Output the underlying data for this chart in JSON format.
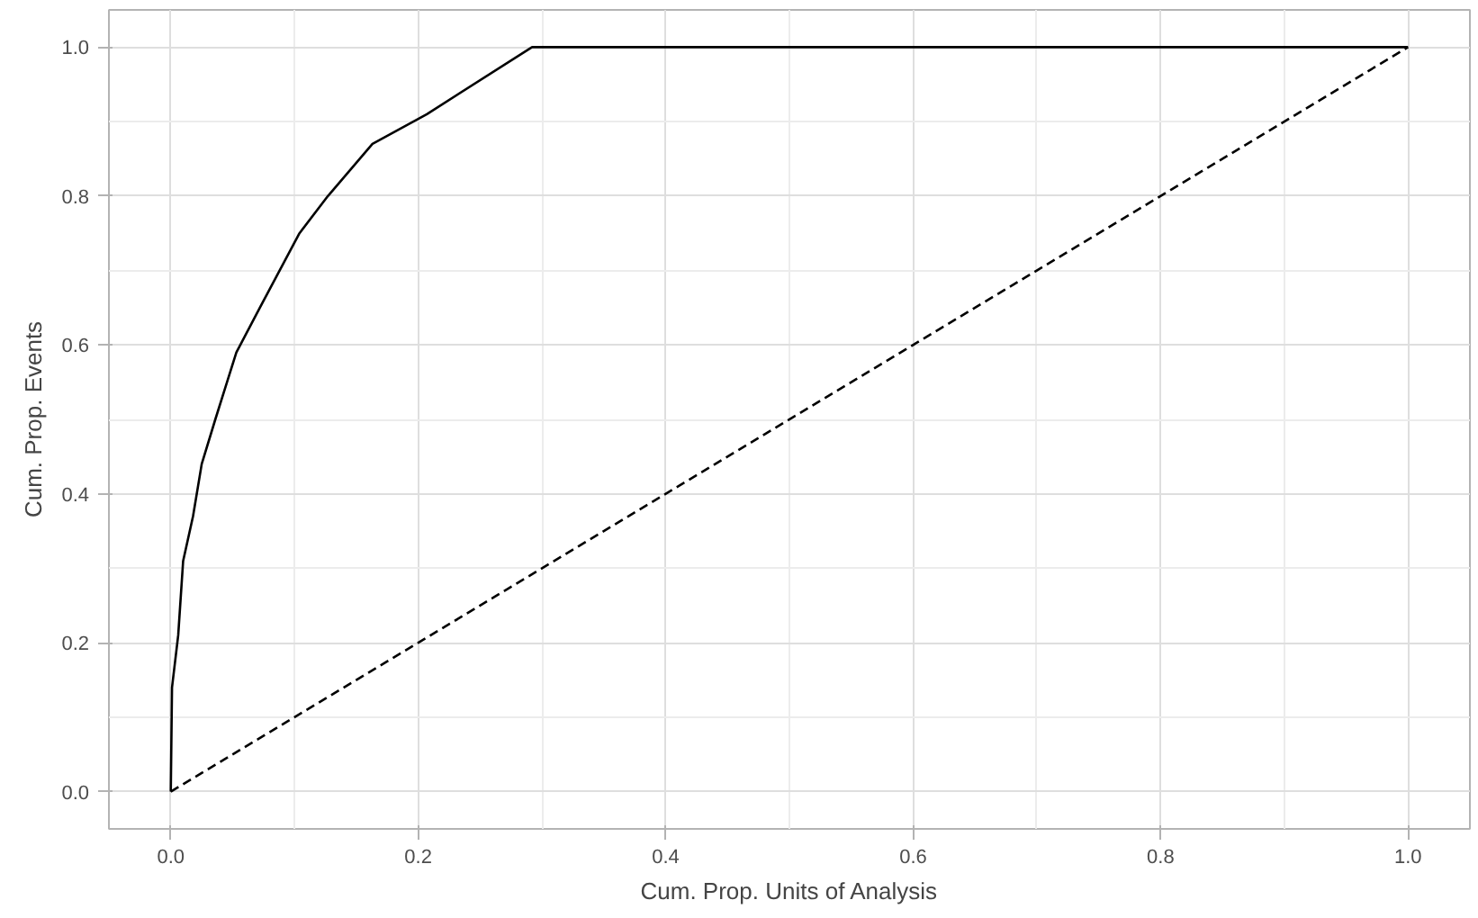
{
  "chart_data": {
    "type": "line",
    "xlabel": "Cum. Prop. Units of Analysis",
    "ylabel": "Cum. Prop. Events",
    "xlim": [
      -0.05,
      1.05
    ],
    "ylim": [
      -0.05,
      1.05
    ],
    "xticks": [
      {
        "value": 0,
        "label": "0.0"
      },
      {
        "value": 0.2,
        "label": "0.2"
      },
      {
        "value": 0.4,
        "label": "0.4"
      },
      {
        "value": 0.6,
        "label": "0.6"
      },
      {
        "value": 0.8,
        "label": "0.8"
      },
      {
        "value": 1,
        "label": "1.0"
      }
    ],
    "yticks": [
      {
        "value": 0,
        "label": "0.0"
      },
      {
        "value": 0.2,
        "label": "0.2"
      },
      {
        "value": 0.4,
        "label": "0.4"
      },
      {
        "value": 0.6,
        "label": "0.6"
      },
      {
        "value": 0.8,
        "label": "0.8"
      },
      {
        "value": 1,
        "label": "1.0"
      }
    ],
    "grid": true,
    "series": [
      {
        "color": "#000000",
        "line_style": "solid",
        "x": [
          0,
          0.001,
          0.006,
          0.01,
          0.018,
          0.025,
          0.036,
          0.053,
          0.072,
          0.104,
          0.127,
          0.163,
          0.207,
          0.292,
          1
        ],
        "values": [
          0,
          0.14,
          0.21,
          0.31,
          0.37,
          0.44,
          0.5,
          0.59,
          0.65,
          0.75,
          0.8,
          0.87,
          0.91,
          1,
          1
        ]
      },
      {
        "color": "#000000",
        "line_style": "dashed",
        "x": [
          0,
          1
        ],
        "values": [
          0,
          1
        ]
      }
    ]
  }
}
